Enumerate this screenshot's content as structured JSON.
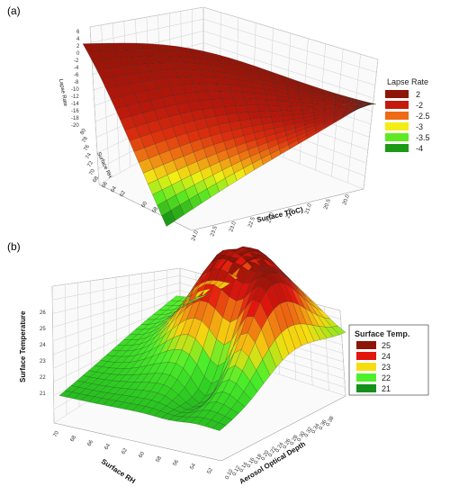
{
  "chart_data": [
    {
      "type": "surface",
      "panel_label": "(a)",
      "zlabel": "Lapse Rate",
      "ylabel": "Surface RH",
      "xlabel": "Surface T(oC)",
      "z_ticks": [
        "6",
        "4",
        "2",
        "0",
        "-2",
        "-4",
        "-6",
        "-8",
        "-10",
        "-12",
        "-14",
        "-16",
        "-18",
        "-20"
      ],
      "y_ticks": [
        "80",
        "78",
        "76",
        "74",
        "72",
        "70",
        "68",
        "66",
        "64",
        "62",
        "60",
        "58"
      ],
      "x_ticks": [
        "24.0",
        "23.5",
        "23.0",
        "22.5",
        "22.0",
        "21.5",
        "21.0",
        "20.5",
        "20.0"
      ],
      "legend": {
        "title": "Lapse Rate",
        "placement": "right",
        "items": [
          {
            "label": "2",
            "color": "#8e1407"
          },
          {
            "label": "-2",
            "color": "#c51a0b"
          },
          {
            "label": "-2.5",
            "color": "#ec6b14"
          },
          {
            "label": "-3",
            "color": "#f2ee14"
          },
          {
            "label": "-3.5",
            "color": "#5eea23"
          },
          {
            "label": "-4",
            "color": "#1c9a16"
          }
        ]
      }
    },
    {
      "type": "surface",
      "panel_label": "(b)",
      "zlabel": "Surface Temperature",
      "xlabel": "Surface RH",
      "ylabel": "Aerosol Optical Depth",
      "z_ticks": [
        "26",
        "25",
        "24",
        "23",
        "22",
        "21"
      ],
      "x_ticks": [
        "70",
        "68",
        "66",
        "64",
        "62",
        "60",
        "58",
        "56",
        "54",
        "52"
      ],
      "y_ticks": [
        "0.10",
        "0.12",
        "0.14",
        "0.16",
        "0.18",
        "0.20",
        "0.22",
        "0.24",
        "0.26",
        "0.28",
        "0.30",
        "0.32",
        "0.34",
        "0.36",
        "0.38"
      ],
      "legend": {
        "title": "Surface Temp.",
        "placement": "right",
        "items": [
          {
            "label": "25",
            "color": "#8e1407"
          },
          {
            "label": "24",
            "color": "#e3160e"
          },
          {
            "label": "23",
            "color": "#f6dd10"
          },
          {
            "label": "22",
            "color": "#4ef02b"
          },
          {
            "label": "21",
            "color": "#14911a"
          }
        ]
      }
    }
  ]
}
